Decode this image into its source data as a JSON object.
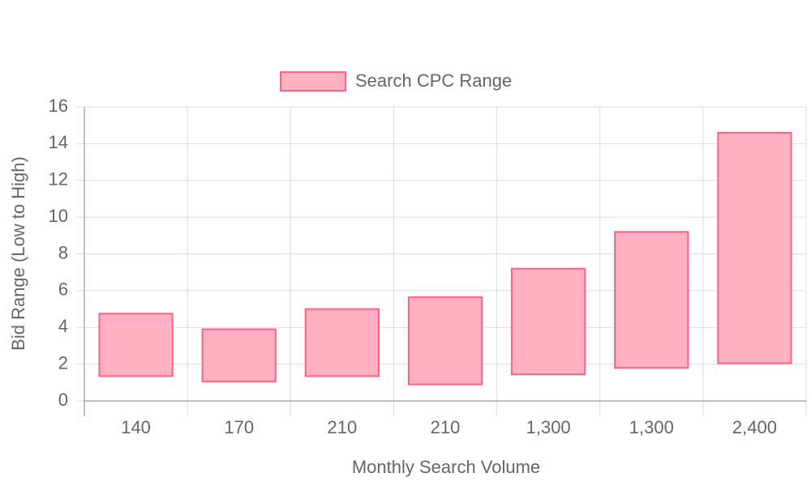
{
  "chart_data": {
    "type": "floating-bar",
    "x_label": "Monthly Search Volume",
    "y_label": "Bid Range (Low to High)",
    "categories": [
      "140",
      "170",
      "210",
      "210",
      "1,300",
      "1,300",
      "2,400"
    ],
    "series": [
      {
        "name": "Search CPC Range",
        "color": "#ff6384",
        "fill": "#ffb1c1",
        "low": [
          1.35,
          1.05,
          1.35,
          0.9,
          1.45,
          1.8,
          2.05
        ],
        "high": [
          4.75,
          3.9,
          5.0,
          5.65,
          7.2,
          9.2,
          14.6
        ]
      }
    ],
    "ylim": [
      0,
      16
    ],
    "yticks": [
      0,
      2,
      4,
      6,
      8,
      10,
      12,
      14,
      16
    ],
    "grid": true,
    "legend": "top"
  }
}
